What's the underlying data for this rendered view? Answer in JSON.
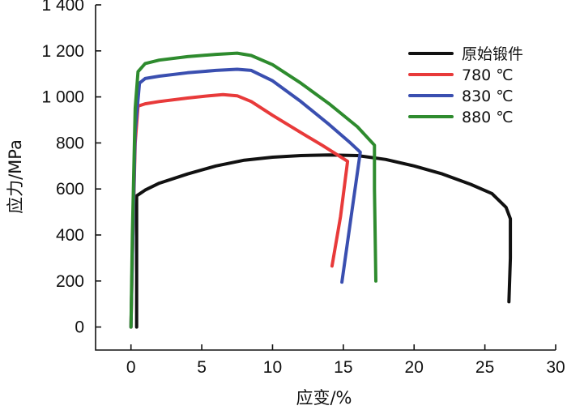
{
  "chart_data": {
    "type": "line",
    "xlabel": "应变/%",
    "ylabel": "应力/MPa",
    "xlim": [
      -2.5,
      30
    ],
    "ylim": [
      -100,
      1400
    ],
    "xticks": [
      0,
      5,
      10,
      15,
      20,
      25,
      30
    ],
    "yticks": [
      0,
      200,
      400,
      600,
      800,
      1000,
      1200,
      1400
    ],
    "xtick_labels": [
      "0",
      "5",
      "10",
      "15",
      "20",
      "25",
      "30"
    ],
    "ytick_labels": [
      "0",
      "200",
      "400",
      "600",
      "800",
      "1 000",
      "1 200",
      "1 400"
    ],
    "grid": false,
    "legend_position": "top-right",
    "series": [
      {
        "name": "原始锻件",
        "color": "#111111",
        "points": [
          [
            0.4,
            0
          ],
          [
            0.4,
            570
          ],
          [
            1,
            595
          ],
          [
            2,
            625
          ],
          [
            4,
            665
          ],
          [
            6,
            700
          ],
          [
            8,
            725
          ],
          [
            10,
            738
          ],
          [
            12,
            745
          ],
          [
            14,
            748
          ],
          [
            16,
            745
          ],
          [
            18,
            728
          ],
          [
            20,
            700
          ],
          [
            22,
            665
          ],
          [
            24,
            620
          ],
          [
            25.5,
            580
          ],
          [
            26.5,
            520
          ],
          [
            26.8,
            470
          ],
          [
            26.8,
            300
          ],
          [
            26.7,
            110
          ]
        ]
      },
      {
        "name": "780 ℃",
        "color": "#e83a3a",
        "points": [
          [
            0,
            0
          ],
          [
            0.1,
            300
          ],
          [
            0.3,
            800
          ],
          [
            0.5,
            960
          ],
          [
            1,
            970
          ],
          [
            2,
            980
          ],
          [
            4,
            995
          ],
          [
            5.5,
            1005
          ],
          [
            6.5,
            1010
          ],
          [
            7.5,
            1005
          ],
          [
            8.5,
            980
          ],
          [
            10,
            920
          ],
          [
            12,
            845
          ],
          [
            13.5,
            790
          ],
          [
            15.3,
            720
          ],
          [
            14.8,
            480
          ],
          [
            14.2,
            265
          ]
        ]
      },
      {
        "name": "830 ℃",
        "color": "#3a4fb0",
        "points": [
          [
            0,
            0
          ],
          [
            0.1,
            300
          ],
          [
            0.3,
            850
          ],
          [
            0.6,
            1060
          ],
          [
            1,
            1080
          ],
          [
            2,
            1090
          ],
          [
            4,
            1105
          ],
          [
            6,
            1115
          ],
          [
            7.5,
            1120
          ],
          [
            8.5,
            1115
          ],
          [
            10,
            1070
          ],
          [
            12,
            980
          ],
          [
            14,
            880
          ],
          [
            15.5,
            800
          ],
          [
            16.2,
            760
          ],
          [
            15.6,
            500
          ],
          [
            14.9,
            195
          ]
        ]
      },
      {
        "name": "880 ℃",
        "color": "#2e8b2e",
        "points": [
          [
            0,
            0
          ],
          [
            0.1,
            400
          ],
          [
            0.3,
            950
          ],
          [
            0.5,
            1110
          ],
          [
            1,
            1145
          ],
          [
            2,
            1160
          ],
          [
            4,
            1175
          ],
          [
            6,
            1185
          ],
          [
            7.5,
            1190
          ],
          [
            8.5,
            1180
          ],
          [
            10,
            1140
          ],
          [
            12,
            1060
          ],
          [
            14,
            970
          ],
          [
            16,
            870
          ],
          [
            17.2,
            790
          ],
          [
            17.2,
            600
          ],
          [
            17.3,
            200
          ]
        ]
      }
    ]
  }
}
